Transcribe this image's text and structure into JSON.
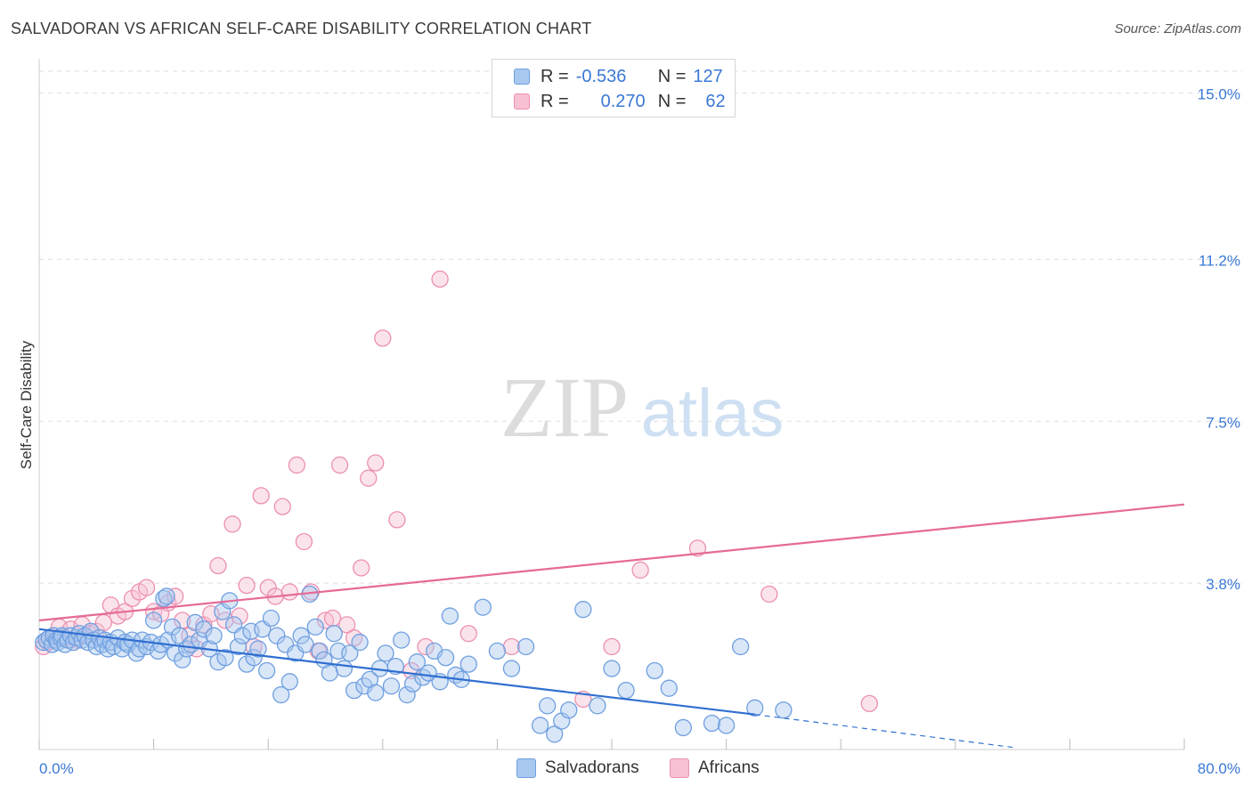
{
  "title": "SALVADORAN VS AFRICAN SELF-CARE DISABILITY CORRELATION CHART",
  "source": "Source: ZipAtlas.com",
  "watermark": {
    "zip": "ZIP",
    "atlas": "atlas"
  },
  "legend_top": {
    "rows": [
      {
        "r_label": "R =",
        "r_value": "-0.536",
        "n_label": "N =",
        "n_value": "127"
      },
      {
        "r_label": "R =",
        "r_value": "0.270",
        "n_label": "N =",
        "n_value": "62"
      }
    ]
  },
  "legend_bottom": {
    "items": [
      "Salvadorans",
      "Africans"
    ]
  },
  "colors": {
    "blue_fill": "#a9c8f0",
    "blue_stroke": "#6f9fdf",
    "blue_line": "#2f6fd0",
    "pink_fill": "#f7c1d3",
    "pink_stroke": "#ec8fb0",
    "pink_line": "#e56a96",
    "axis_text": "#3a78d6",
    "grid": "#dddddd"
  },
  "chart_data": {
    "type": "scatter",
    "title": "SALVADORAN VS AFRICAN SELF-CARE DISABILITY CORRELATION CHART",
    "xlabel": "",
    "ylabel": "Self-Care Disability",
    "xlim": [
      0,
      80
    ],
    "ylim": [
      0,
      15.5
    ],
    "x_tick_labels": [
      "0.0%",
      "80.0%"
    ],
    "y_ticks": [
      3.8,
      7.5,
      11.2,
      15.0
    ],
    "y_tick_labels": [
      "3.8%",
      "7.5%",
      "11.2%",
      "15.0%"
    ],
    "grid": true,
    "legend_placement": "top-center",
    "series": [
      {
        "name": "Salvadorans",
        "r": -0.536,
        "n": 127,
        "trend": {
          "x0": 0,
          "y0": 2.75,
          "x1": 50,
          "y1": 0.8,
          "dashed_to_x": 68,
          "dashed_to_y": 0.05
        },
        "points": [
          [
            0.3,
            2.45
          ],
          [
            0.5,
            2.5
          ],
          [
            0.7,
            2.55
          ],
          [
            0.9,
            2.4
          ],
          [
            1.0,
            2.6
          ],
          [
            1.2,
            2.5
          ],
          [
            1.3,
            2.45
          ],
          [
            1.5,
            2.55
          ],
          [
            1.6,
            2.6
          ],
          [
            1.8,
            2.4
          ],
          [
            2.0,
            2.5
          ],
          [
            2.2,
            2.6
          ],
          [
            2.4,
            2.45
          ],
          [
            2.6,
            2.55
          ],
          [
            2.8,
            2.65
          ],
          [
            3.0,
            2.5
          ],
          [
            3.2,
            2.6
          ],
          [
            3.4,
            2.45
          ],
          [
            3.6,
            2.7
          ],
          [
            3.8,
            2.5
          ],
          [
            4.0,
            2.35
          ],
          [
            4.2,
            2.55
          ],
          [
            4.4,
            2.4
          ],
          [
            4.6,
            2.5
          ],
          [
            4.8,
            2.3
          ],
          [
            5.0,
            2.45
          ],
          [
            5.2,
            2.35
          ],
          [
            5.5,
            2.55
          ],
          [
            5.8,
            2.3
          ],
          [
            6.0,
            2.45
          ],
          [
            6.2,
            2.4
          ],
          [
            6.5,
            2.5
          ],
          [
            6.8,
            2.2
          ],
          [
            7.0,
            2.3
          ],
          [
            7.2,
            2.5
          ],
          [
            7.5,
            2.35
          ],
          [
            7.8,
            2.45
          ],
          [
            8.0,
            2.95
          ],
          [
            8.3,
            2.25
          ],
          [
            8.5,
            2.4
          ],
          [
            8.7,
            3.45
          ],
          [
            8.9,
            3.5
          ],
          [
            9.0,
            2.5
          ],
          [
            9.3,
            2.8
          ],
          [
            9.5,
            2.2
          ],
          [
            9.8,
            2.6
          ],
          [
            10.0,
            2.05
          ],
          [
            10.3,
            2.3
          ],
          [
            10.6,
            2.4
          ],
          [
            10.9,
            2.9
          ],
          [
            11.2,
            2.5
          ],
          [
            11.5,
            2.75
          ],
          [
            11.9,
            2.3
          ],
          [
            12.2,
            2.6
          ],
          [
            12.5,
            2.0
          ],
          [
            12.8,
            3.15
          ],
          [
            13.0,
            2.1
          ],
          [
            13.3,
            3.4
          ],
          [
            13.6,
            2.85
          ],
          [
            13.9,
            2.35
          ],
          [
            14.2,
            2.6
          ],
          [
            14.5,
            1.95
          ],
          [
            14.8,
            2.7
          ],
          [
            15.0,
            2.1
          ],
          [
            15.3,
            2.3
          ],
          [
            15.6,
            2.75
          ],
          [
            15.9,
            1.8
          ],
          [
            16.2,
            3.0
          ],
          [
            16.6,
            2.6
          ],
          [
            16.9,
            1.25
          ],
          [
            17.2,
            2.4
          ],
          [
            17.5,
            1.55
          ],
          [
            17.9,
            2.2
          ],
          [
            18.3,
            2.6
          ],
          [
            18.6,
            2.4
          ],
          [
            18.9,
            3.55
          ],
          [
            19.3,
            2.8
          ],
          [
            19.6,
            2.25
          ],
          [
            19.9,
            2.05
          ],
          [
            20.3,
            1.75
          ],
          [
            20.6,
            2.65
          ],
          [
            20.9,
            2.25
          ],
          [
            21.3,
            1.85
          ],
          [
            21.7,
            2.2
          ],
          [
            22.0,
            1.35
          ],
          [
            22.4,
            2.45
          ],
          [
            22.7,
            1.45
          ],
          [
            23.1,
            1.6
          ],
          [
            23.5,
            1.3
          ],
          [
            23.8,
            1.85
          ],
          [
            24.2,
            2.2
          ],
          [
            24.6,
            1.45
          ],
          [
            24.9,
            1.9
          ],
          [
            25.3,
            2.5
          ],
          [
            25.7,
            1.25
          ],
          [
            26.1,
            1.5
          ],
          [
            26.4,
            2.0
          ],
          [
            26.8,
            1.65
          ],
          [
            27.2,
            1.75
          ],
          [
            27.6,
            2.25
          ],
          [
            28.0,
            1.55
          ],
          [
            28.4,
            2.1
          ],
          [
            28.7,
            3.05
          ],
          [
            29.1,
            1.7
          ],
          [
            29.5,
            1.6
          ],
          [
            30.0,
            1.95
          ],
          [
            31.0,
            3.25
          ],
          [
            32.0,
            2.25
          ],
          [
            33.0,
            1.85
          ],
          [
            34.0,
            2.35
          ],
          [
            35.0,
            0.55
          ],
          [
            35.5,
            1.0
          ],
          [
            36.0,
            0.35
          ],
          [
            36.5,
            0.65
          ],
          [
            37.0,
            0.9
          ],
          [
            38.0,
            3.2
          ],
          [
            39.0,
            1.0
          ],
          [
            40.0,
            1.85
          ],
          [
            41.0,
            1.35
          ],
          [
            43.0,
            1.8
          ],
          [
            44.0,
            1.4
          ],
          [
            45.0,
            0.5
          ],
          [
            47.0,
            0.6
          ],
          [
            48.0,
            0.55
          ],
          [
            49.0,
            2.35
          ],
          [
            50.0,
            0.95
          ],
          [
            52.0,
            0.9
          ]
        ]
      },
      {
        "name": "Africans",
        "r": 0.27,
        "n": 62,
        "trend": {
          "x0": 0,
          "y0": 2.95,
          "x1": 80,
          "y1": 5.6
        },
        "points": [
          [
            0.3,
            2.35
          ],
          [
            0.6,
            2.45
          ],
          [
            1.0,
            2.6
          ],
          [
            1.4,
            2.8
          ],
          [
            1.8,
            2.55
          ],
          [
            2.2,
            2.75
          ],
          [
            2.6,
            2.5
          ],
          [
            3.0,
            2.85
          ],
          [
            3.5,
            2.65
          ],
          [
            4.0,
            2.7
          ],
          [
            4.5,
            2.9
          ],
          [
            5.0,
            3.3
          ],
          [
            5.5,
            3.05
          ],
          [
            6.0,
            3.15
          ],
          [
            6.5,
            3.45
          ],
          [
            7.0,
            3.6
          ],
          [
            7.5,
            3.7
          ],
          [
            8.0,
            3.15
          ],
          [
            8.5,
            3.1
          ],
          [
            9.0,
            3.35
          ],
          [
            9.5,
            3.5
          ],
          [
            10.0,
            2.95
          ],
          [
            10.5,
            2.6
          ],
          [
            11.0,
            2.3
          ],
          [
            11.5,
            2.85
          ],
          [
            12.0,
            3.1
          ],
          [
            12.5,
            4.2
          ],
          [
            13.0,
            2.95
          ],
          [
            13.5,
            5.15
          ],
          [
            14.0,
            3.05
          ],
          [
            14.5,
            3.75
          ],
          [
            15.0,
            2.35
          ],
          [
            15.5,
            5.8
          ],
          [
            16.0,
            3.7
          ],
          [
            16.5,
            3.5
          ],
          [
            17.0,
            5.55
          ],
          [
            17.5,
            3.6
          ],
          [
            18.0,
            6.5
          ],
          [
            18.5,
            4.75
          ],
          [
            19.0,
            3.6
          ],
          [
            19.5,
            2.25
          ],
          [
            20.0,
            2.95
          ],
          [
            20.5,
            3.0
          ],
          [
            21.0,
            6.5
          ],
          [
            21.5,
            2.85
          ],
          [
            22.0,
            2.55
          ],
          [
            22.5,
            4.15
          ],
          [
            23.0,
            6.2
          ],
          [
            23.5,
            6.55
          ],
          [
            24.0,
            9.4
          ],
          [
            25.0,
            5.25
          ],
          [
            26.0,
            1.8
          ],
          [
            27.0,
            2.35
          ],
          [
            28.0,
            10.75
          ],
          [
            30.0,
            2.65
          ],
          [
            33.0,
            2.35
          ],
          [
            38.0,
            1.15
          ],
          [
            40.0,
            2.35
          ],
          [
            42.0,
            4.1
          ],
          [
            46.0,
            4.6
          ],
          [
            51.0,
            3.55
          ],
          [
            58.0,
            1.05
          ]
        ]
      }
    ],
    "outliers_note_hidden": ""
  }
}
